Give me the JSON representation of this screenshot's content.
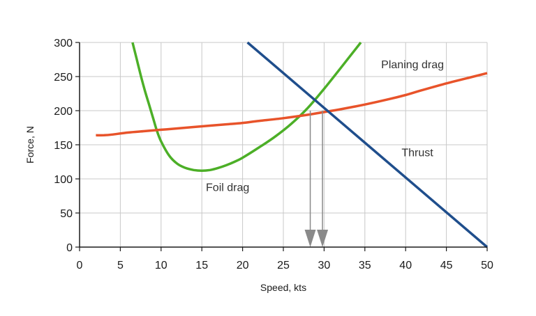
{
  "chart_data": {
    "type": "line",
    "xlabel": "Speed, kts",
    "ylabel": "Force, N",
    "xlim": [
      0,
      50
    ],
    "ylim": [
      0,
      300
    ],
    "xticks": [
      0,
      5,
      10,
      15,
      20,
      25,
      30,
      35,
      40,
      45,
      50
    ],
    "yticks": [
      0,
      50,
      100,
      150,
      200,
      250,
      300
    ],
    "grid": true,
    "legend": "none",
    "series": [
      {
        "name": "Foil drag",
        "color": "#4caf27",
        "x": [
          6.5,
          7.0,
          7.5,
          8.0,
          8.5,
          9.0,
          9.5,
          10,
          11,
          12,
          13,
          14,
          15,
          16,
          17,
          18,
          19,
          20,
          22,
          24,
          26,
          28,
          30,
          32,
          34.5
        ],
        "y": [
          300,
          276,
          252,
          230,
          210,
          190,
          170,
          155,
          134,
          122,
          116,
          113,
          112,
          113,
          116,
          120,
          125,
          131,
          146,
          162,
          181,
          204,
          232,
          262,
          300
        ]
      },
      {
        "name": "Planing drag",
        "color": "#e8532a",
        "x": [
          2,
          3,
          4,
          6,
          8,
          10,
          12,
          15,
          18,
          20,
          22,
          25,
          28,
          30,
          32,
          35,
          38,
          40,
          42,
          45,
          48,
          50
        ],
        "y": [
          164,
          164,
          165,
          168,
          170,
          172,
          174,
          177,
          180,
          182,
          185,
          189,
          194,
          198,
          202,
          209,
          217,
          223,
          230,
          240,
          249,
          255
        ]
      },
      {
        "name": "Thrust",
        "color": "#1f4e8c",
        "x": [
          20.6,
          50
        ],
        "y": [
          300,
          0
        ]
      }
    ],
    "annotations": [
      {
        "text": "Planing drag",
        "x": 37,
        "y": 262
      },
      {
        "text": "Thrust",
        "x": 39.5,
        "y": 133
      },
      {
        "text": "Foil drag",
        "x": 15.5,
        "y": 82
      }
    ],
    "markers": [
      {
        "x": 28.3,
        "from_y": 200,
        "to_y": 0
      },
      {
        "x": 29.8,
        "from_y": 200,
        "to_y": 0
      }
    ],
    "marker_color": "#8a8a8a"
  }
}
